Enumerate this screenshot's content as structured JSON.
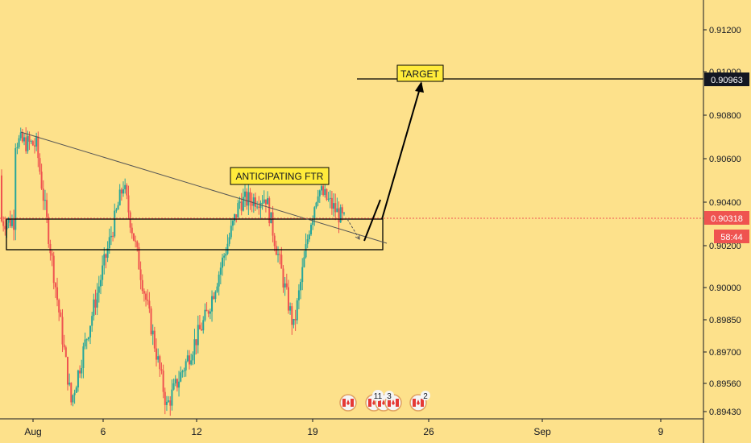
{
  "chart_data": {
    "type": "candlestick",
    "symbol_context": "price chart",
    "y_ticks": [
      "0.91200",
      "0.91000",
      "0.90800",
      "0.90600",
      "0.90400",
      "0.90200",
      "0.90000",
      "0.89850",
      "0.89700",
      "0.89560",
      "0.89430"
    ],
    "x_ticks": [
      "Aug",
      "6",
      "12",
      "19",
      "26",
      "Sep",
      "9"
    ],
    "price_scale": {
      "type": "log",
      "min": 0.8942,
      "max": 0.9138
    },
    "grid": false,
    "colors": {
      "background": "#fde18b",
      "up": "#26a69a",
      "down": "#ef5350",
      "current_price_label": "#ef5350",
      "target_label": "#131722",
      "annotation_box": "#ffeb3b",
      "lines": "#000000"
    },
    "candles": {
      "count": 198,
      "start_price": 0.9052,
      "peaks": [
        {
          "index": 8,
          "price": 0.9068
        },
        {
          "index": 20,
          "price": 0.9066
        },
        {
          "index": 40,
          "price": 0.8948
        },
        {
          "index": 70,
          "price": 0.9048
        },
        {
          "index": 95,
          "price": 0.8946
        },
        {
          "index": 118,
          "price": 0.8988
        },
        {
          "index": 137,
          "price": 0.904
        },
        {
          "index": 152,
          "price": 0.9042
        },
        {
          "index": 163,
          "price": 0.9
        },
        {
          "index": 168,
          "price": 0.8982
        },
        {
          "index": 177,
          "price": 0.9028
        },
        {
          "index": 182,
          "price": 0.9046
        },
        {
          "index": 197,
          "price": 0.9031
        }
      ]
    },
    "current_price": "0.90318",
    "countdown": "58:44",
    "target_price": "0.90963",
    "annotations": {
      "anticipating": "ANTICIPATING FTR",
      "target": "TARGET"
    },
    "zone": {
      "price_top": 0.9031,
      "price_bottom": 0.9022
    },
    "trendline": {
      "from_price": 0.9072,
      "to_price": 0.9022
    },
    "events": [
      {
        "flag": "canada",
        "count": ""
      },
      {
        "flag": "canada",
        "count": "11"
      },
      {
        "flag": "canada",
        "count": "3"
      },
      {
        "flag": "canada",
        "count": "2"
      }
    ]
  }
}
